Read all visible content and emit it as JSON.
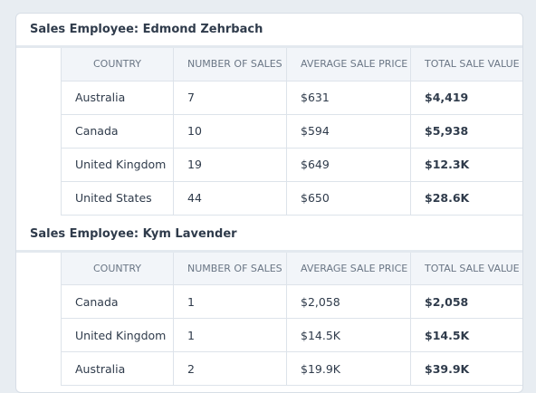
{
  "columns": {
    "country": "Country",
    "sales_count": "Number of Sales",
    "avg_price": "Average Sale Price",
    "total_value": "Total Sale Value"
  },
  "groups": [
    {
      "title": "Sales Employee: Edmond Zehrbach",
      "rows": [
        {
          "country": "Australia",
          "sales_count": "7",
          "avg_price": "$631",
          "total_value": "$4,419"
        },
        {
          "country": "Canada",
          "sales_count": "10",
          "avg_price": "$594",
          "total_value": "$5,938"
        },
        {
          "country": "United Kingdom",
          "sales_count": "19",
          "avg_price": "$649",
          "total_value": "$12.3K"
        },
        {
          "country": "United States",
          "sales_count": "44",
          "avg_price": "$650",
          "total_value": "$28.6K"
        }
      ]
    },
    {
      "title": "Sales Employee: Kym Lavender",
      "rows": [
        {
          "country": "Canada",
          "sales_count": "1",
          "avg_price": "$2,058",
          "total_value": "$2,058"
        },
        {
          "country": "United Kingdom",
          "sales_count": "1",
          "avg_price": "$14.5K",
          "total_value": "$14.5K"
        },
        {
          "country": "Australia",
          "sales_count": "2",
          "avg_price": "$19.9K",
          "total_value": "$39.9K"
        }
      ]
    }
  ]
}
